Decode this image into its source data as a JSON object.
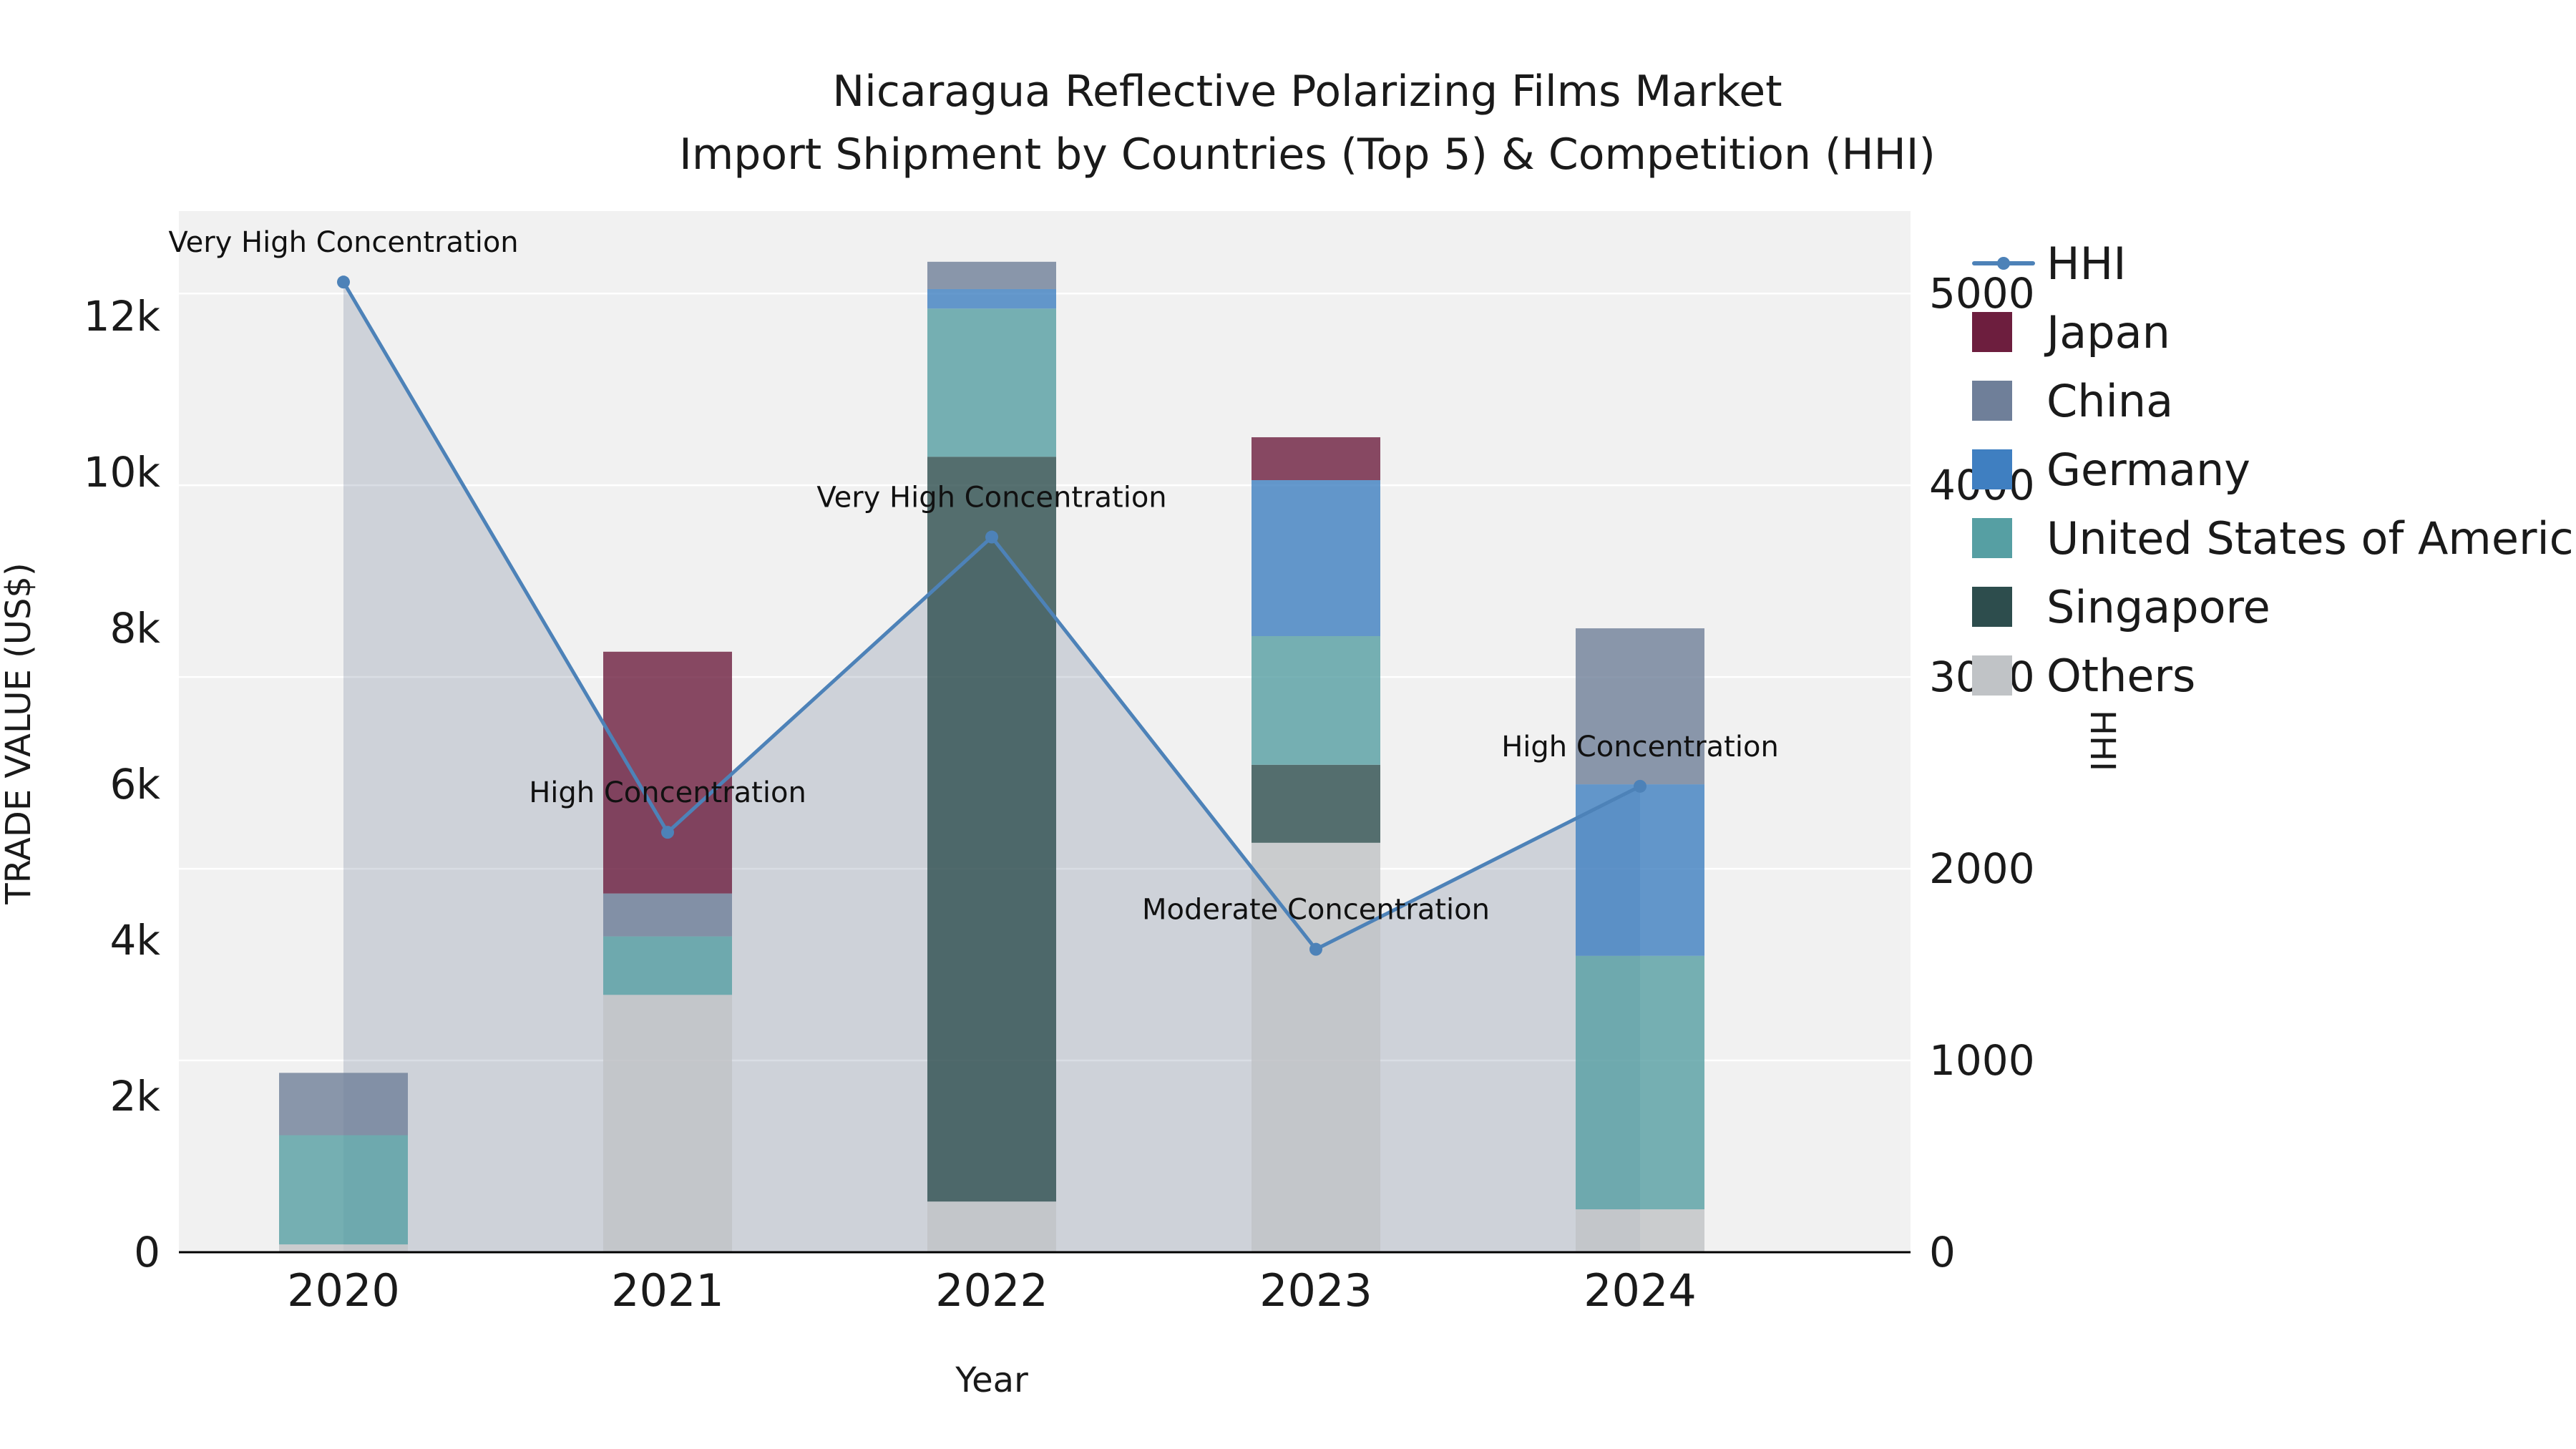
{
  "title": {
    "line1": "Nicaragua Reflective Polarizing Films Market",
    "line2": "Import Shipment by Countries (Top 5) & Competition (HHI)"
  },
  "legend": [
    {
      "label": "HHI",
      "type": "line",
      "color": "#4d82b8"
    },
    {
      "label": "Japan",
      "type": "square",
      "color": "#6d1e3e"
    },
    {
      "label": "China",
      "type": "square",
      "color": "#6f7f99"
    },
    {
      "label": "Germany",
      "type": "square",
      "color": "#3f7fc1"
    },
    {
      "label": "United States of America",
      "type": "square",
      "color": "#569fa3"
    },
    {
      "label": "Singapore",
      "type": "square",
      "color": "#2d4d4d"
    },
    {
      "label": "Others",
      "type": "square",
      "color": "#c0c3c6"
    }
  ],
  "chart_data": {
    "type": "bar",
    "subtype": "stacked-bars-with-line-overlay",
    "title": "Nicaragua Reflective Polarizing Films Market — Import Shipment by Countries (Top 5) & Competition (HHI)",
    "categories": [
      "2020",
      "2021",
      "2022",
      "2023",
      "2024"
    ],
    "x": {
      "title": "Year"
    },
    "y_left": {
      "title": "TRADE VALUE (US$)",
      "ticks": [
        0,
        2000,
        4000,
        6000,
        8000,
        10000,
        12000
      ],
      "tick_labels": [
        "0",
        "2k",
        "4k",
        "6k",
        "8k",
        "10k",
        "12k"
      ],
      "max": 13350
    },
    "y_right": {
      "title": "HHI",
      "ticks": [
        0,
        1000,
        2000,
        3000,
        4000,
        5000
      ],
      "tick_labels": [
        "0",
        "1000",
        "2000",
        "3000",
        "4000",
        "5000"
      ],
      "max": 5430
    },
    "bar_series_bottom_to_top": [
      {
        "name": "Others",
        "color": "#c0c3c6",
        "values": [
          100,
          3300,
          650,
          5250,
          550
        ]
      },
      {
        "name": "Singapore",
        "color": "#2d4d4d",
        "values": [
          0,
          0,
          9550,
          1000,
          0
        ]
      },
      {
        "name": "United States of America",
        "color": "#569fa3",
        "values": [
          1400,
          750,
          1900,
          1650,
          3250
        ]
      },
      {
        "name": "Germany",
        "color": "#3f7fc1",
        "values": [
          0,
          0,
          250,
          2000,
          2200
        ]
      },
      {
        "name": "China",
        "color": "#6f7f99",
        "values": [
          800,
          550,
          350,
          0,
          2000
        ]
      },
      {
        "name": "Japan",
        "color": "#6d1e3e",
        "values": [
          0,
          3100,
          0,
          550,
          0
        ]
      }
    ],
    "bar_totals": [
      2300,
      7700,
      12700,
      10450,
      8000
    ],
    "line_series": {
      "name": "HHI",
      "color": "#4d82b8",
      "area_fill": "rgba(102,120,148,0.25)",
      "values": [
        5060,
        2190,
        3730,
        1580,
        2430
      ],
      "point_labels": [
        "Very High Concentration",
        "High Concentration",
        "Very High Concentration",
        "Moderate Concentration",
        "High Concentration"
      ]
    },
    "plot_background": "#f1f1f1",
    "grid": "horizontal white lines at right-axis ticks",
    "legend_position": "right"
  }
}
